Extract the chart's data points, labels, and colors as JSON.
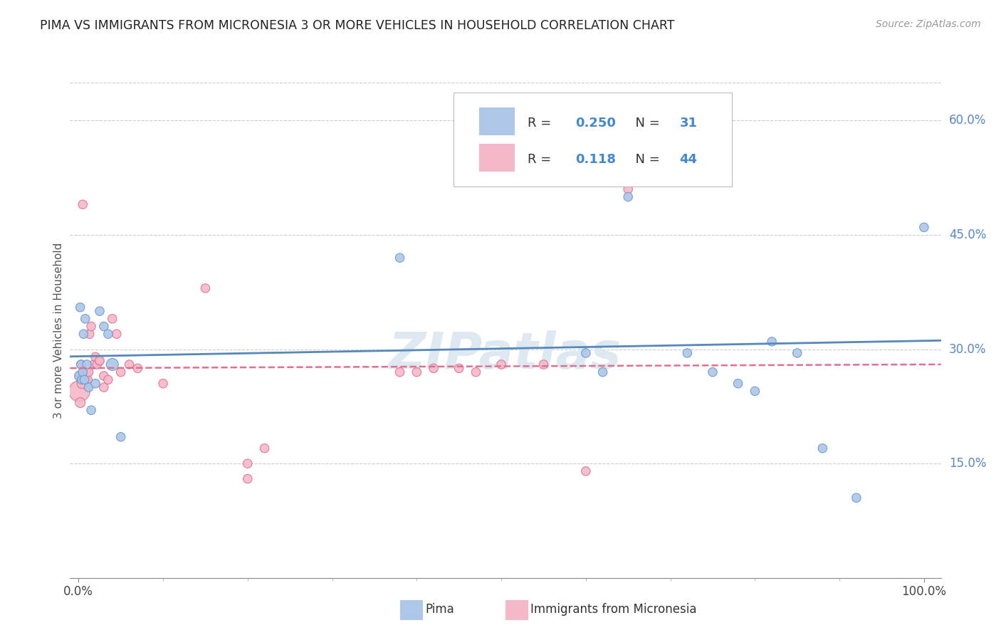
{
  "title": "PIMA VS IMMIGRANTS FROM MICRONESIA 3 OR MORE VEHICLES IN HOUSEHOLD CORRELATION CHART",
  "source": "Source: ZipAtlas.com",
  "ylabel": "3 or more Vehicles in Household",
  "yticks": [
    "15.0%",
    "30.0%",
    "45.0%",
    "60.0%"
  ],
  "ytick_vals": [
    0.15,
    0.3,
    0.45,
    0.6
  ],
  "ymin": 0.0,
  "ymax": 0.65,
  "xmin": -0.01,
  "xmax": 1.02,
  "legend1_r": "0.250",
  "legend1_n": "31",
  "legend2_r": "0.118",
  "legend2_n": "44",
  "color_pima_fill": "#aec6e8",
  "color_pima_edge": "#6699cc",
  "color_micronesia_fill": "#f4b8c8",
  "color_micronesia_edge": "#e07090",
  "color_pima_line": "#5588bb",
  "color_micronesia_line": "#e07090",
  "background": "#ffffff",
  "watermark_color": "#dde8f0",
  "pima_x": [
    0.001,
    0.002,
    0.003,
    0.004,
    0.005,
    0.006,
    0.007,
    0.008,
    0.01,
    0.012,
    0.015,
    0.02,
    0.025,
    0.03,
    0.035,
    0.04,
    0.05,
    0.38,
    0.6,
    0.62,
    0.65,
    0.7,
    0.72,
    0.75,
    0.78,
    0.8,
    0.82,
    0.85,
    0.88,
    0.92,
    1.0
  ],
  "pima_y": [
    0.265,
    0.355,
    0.28,
    0.26,
    0.27,
    0.32,
    0.26,
    0.34,
    0.28,
    0.25,
    0.22,
    0.255,
    0.35,
    0.33,
    0.32,
    0.28,
    0.185,
    0.42,
    0.295,
    0.27,
    0.5,
    0.52,
    0.295,
    0.27,
    0.255,
    0.245,
    0.31,
    0.295,
    0.17,
    0.105,
    0.46
  ],
  "pima_size": [
    100,
    80,
    80,
    80,
    80,
    80,
    80,
    80,
    80,
    80,
    80,
    80,
    80,
    80,
    80,
    150,
    80,
    80,
    80,
    80,
    80,
    110,
    80,
    80,
    80,
    80,
    80,
    80,
    80,
    80,
    80
  ],
  "micronesia_x": [
    0.001,
    0.002,
    0.002,
    0.003,
    0.003,
    0.004,
    0.005,
    0.006,
    0.007,
    0.008,
    0.009,
    0.01,
    0.011,
    0.012,
    0.013,
    0.015,
    0.018,
    0.02,
    0.022,
    0.025,
    0.025,
    0.03,
    0.03,
    0.035,
    0.04,
    0.045,
    0.05,
    0.06,
    0.07,
    0.1,
    0.15,
    0.2,
    0.2,
    0.22,
    0.38,
    0.4,
    0.42,
    0.45,
    0.47,
    0.5,
    0.55,
    0.6,
    0.65,
    0.005
  ],
  "micronesia_y": [
    0.245,
    0.265,
    0.23,
    0.28,
    0.26,
    0.255,
    0.265,
    0.27,
    0.265,
    0.27,
    0.26,
    0.27,
    0.26,
    0.27,
    0.32,
    0.33,
    0.28,
    0.29,
    0.28,
    0.285,
    0.285,
    0.265,
    0.25,
    0.26,
    0.34,
    0.32,
    0.27,
    0.28,
    0.275,
    0.255,
    0.38,
    0.13,
    0.15,
    0.17,
    0.27,
    0.27,
    0.275,
    0.275,
    0.27,
    0.28,
    0.28,
    0.14,
    0.51,
    0.49
  ],
  "micronesia_size": [
    450,
    80,
    100,
    80,
    80,
    100,
    80,
    80,
    80,
    80,
    80,
    80,
    80,
    80,
    80,
    80,
    80,
    80,
    80,
    80,
    80,
    80,
    80,
    80,
    80,
    80,
    80,
    80,
    80,
    80,
    80,
    80,
    80,
    80,
    80,
    80,
    80,
    80,
    80,
    80,
    80,
    80,
    80,
    80
  ]
}
